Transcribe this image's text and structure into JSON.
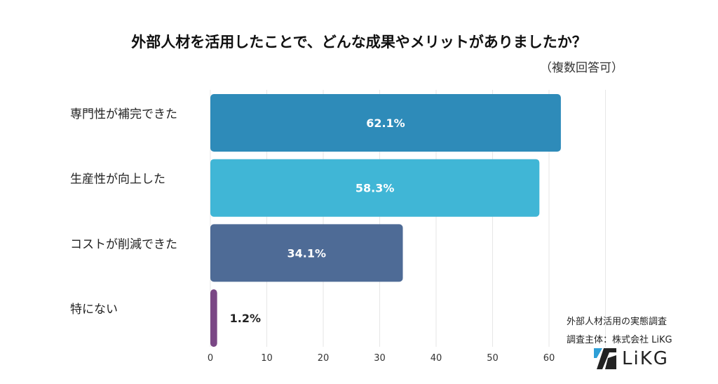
{
  "chart_data": {
    "type": "bar",
    "orientation": "horizontal",
    "title": "外部人材を活用したことで、どんな成果やメリットがありましたか？",
    "subtitle": "（複数回答可）",
    "categories": [
      "専門性が補完できた",
      "生産性が向上した",
      "コストが削減できた",
      "特にない"
    ],
    "values": [
      62.1,
      58.3,
      34.1,
      1.2
    ],
    "value_labels": [
      "62.1%",
      "58.3%",
      "34.1%",
      "1.2%"
    ],
    "colors": [
      "#2e8bb9",
      "#40b6d6",
      "#4e6b96",
      "#7a4785"
    ],
    "xlim": [
      0,
      70
    ],
    "xticks": [
      0,
      10,
      20,
      30,
      40,
      50,
      60
    ],
    "grid": true
  },
  "footer": {
    "source_line1": "外部人材活用の実態調査",
    "source_line2": "調査主体：株式会社 LiKG",
    "logo_text": "LiKG"
  }
}
